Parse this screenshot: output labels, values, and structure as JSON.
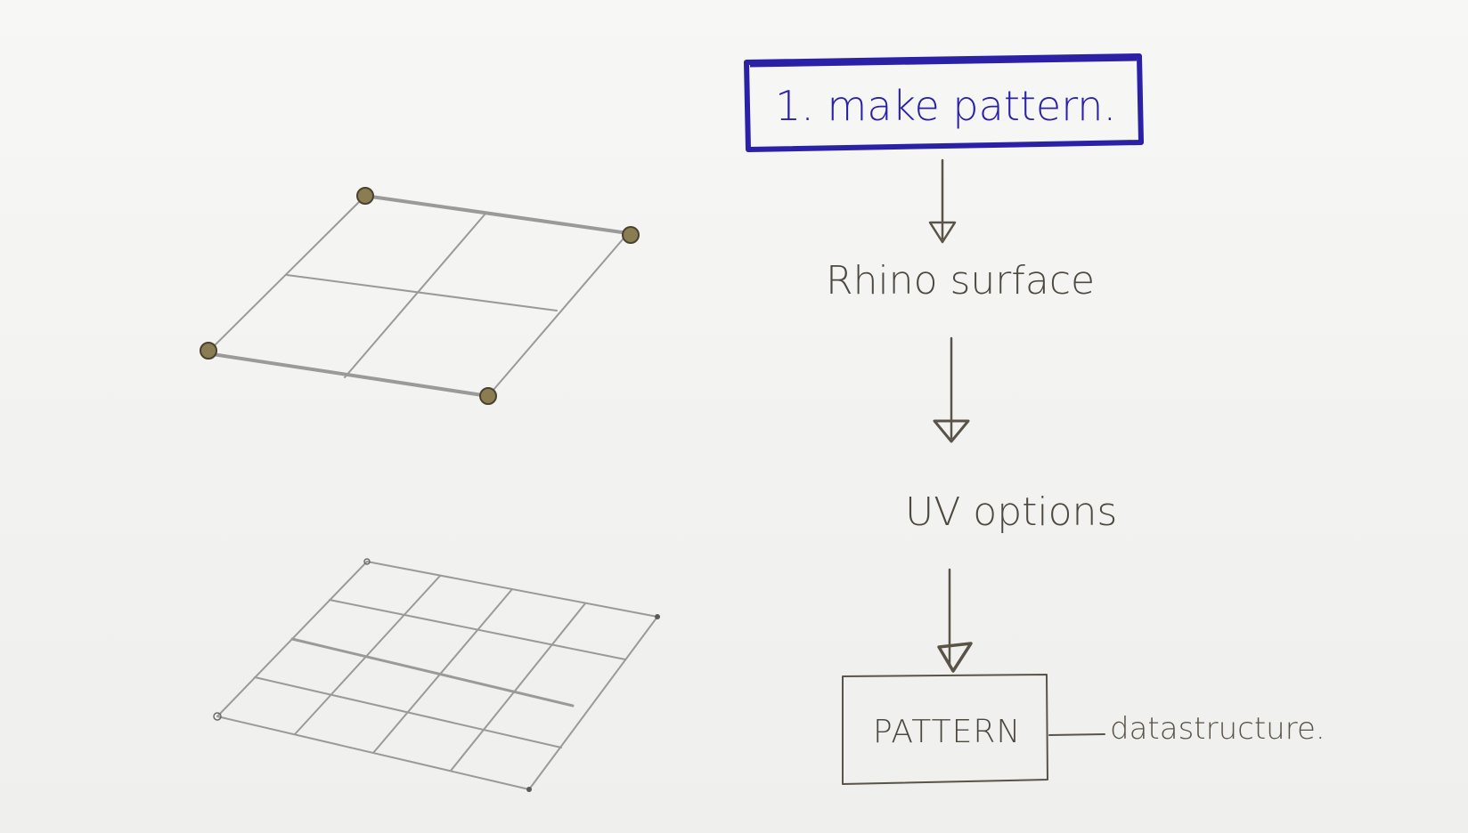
{
  "flow": {
    "title": "1. make pattern.",
    "step_surface": "Rhino surface",
    "step_uv": "UV options",
    "result_box": "PATTERN",
    "result_note": "datastructure."
  },
  "colors": {
    "paper": "#f3f3f1",
    "pencil": "#9a9a98",
    "ink": "#5a5448",
    "blue_ink": "#2a21a6",
    "control_point": "#8b7d52"
  }
}
